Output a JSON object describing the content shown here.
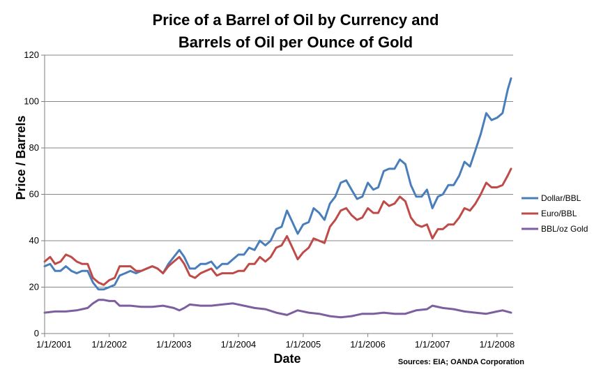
{
  "chart_data": {
    "type": "line",
    "title_lines": [
      "Price of a Barrel of Oil by Currency and",
      "Barrels of Oil per Ounce of Gold"
    ],
    "xlabel": "Date",
    "ylabel": "Price / Barrels",
    "source_note": "Sources: EIA; OANDA Corporation",
    "ylim": [
      0,
      120
    ],
    "yticks": [
      0,
      20,
      40,
      60,
      80,
      100,
      120
    ],
    "xlim": [
      "2001-01-01",
      "2008-04-01"
    ],
    "xticks": [
      {
        "date": "2001-01-01",
        "label": "1/1/2001"
      },
      {
        "date": "2002-01-01",
        "label": "1/1/2002"
      },
      {
        "date": "2003-01-01",
        "label": "1/1/2003"
      },
      {
        "date": "2004-01-01",
        "label": "1/1/2004"
      },
      {
        "date": "2005-01-01",
        "label": "1/1/2005"
      },
      {
        "date": "2006-01-01",
        "label": "1/1/2006"
      },
      {
        "date": "2007-01-01",
        "label": "1/1/2007"
      },
      {
        "date": "2008-01-01",
        "label": "1/1/2008"
      }
    ],
    "grid": "horizontal",
    "legend_position": "right",
    "series": [
      {
        "name": "Dollar/BBL",
        "color": "#4a7ebb",
        "points": [
          [
            "2001-01-01",
            29
          ],
          [
            "2001-02-01",
            30
          ],
          [
            "2001-03-01",
            27
          ],
          [
            "2001-04-01",
            27
          ],
          [
            "2001-05-01",
            29
          ],
          [
            "2001-06-01",
            27
          ],
          [
            "2001-07-01",
            26
          ],
          [
            "2001-08-01",
            27
          ],
          [
            "2001-09-01",
            27
          ],
          [
            "2001-10-01",
            22
          ],
          [
            "2001-11-01",
            19
          ],
          [
            "2001-12-01",
            19
          ],
          [
            "2002-01-01",
            20
          ],
          [
            "2002-02-01",
            21
          ],
          [
            "2002-03-01",
            25
          ],
          [
            "2002-04-01",
            26
          ],
          [
            "2002-05-01",
            27
          ],
          [
            "2002-06-01",
            26
          ],
          [
            "2002-07-01",
            27
          ],
          [
            "2002-08-01",
            28
          ],
          [
            "2002-09-01",
            29
          ],
          [
            "2002-10-01",
            28
          ],
          [
            "2002-11-01",
            26
          ],
          [
            "2002-12-01",
            30
          ],
          [
            "2003-01-01",
            33
          ],
          [
            "2003-02-01",
            36
          ],
          [
            "2003-03-01",
            33
          ],
          [
            "2003-04-01",
            28
          ],
          [
            "2003-05-01",
            28
          ],
          [
            "2003-06-01",
            30
          ],
          [
            "2003-07-01",
            30
          ],
          [
            "2003-08-01",
            31
          ],
          [
            "2003-09-01",
            28
          ],
          [
            "2003-10-01",
            30
          ],
          [
            "2003-11-01",
            30
          ],
          [
            "2003-12-01",
            32
          ],
          [
            "2004-01-01",
            34
          ],
          [
            "2004-02-01",
            34
          ],
          [
            "2004-03-01",
            37
          ],
          [
            "2004-04-01",
            36
          ],
          [
            "2004-05-01",
            40
          ],
          [
            "2004-06-01",
            38
          ],
          [
            "2004-07-01",
            40
          ],
          [
            "2004-08-01",
            45
          ],
          [
            "2004-09-01",
            46
          ],
          [
            "2004-10-01",
            53
          ],
          [
            "2004-11-01",
            48
          ],
          [
            "2004-12-01",
            43
          ],
          [
            "2005-01-01",
            47
          ],
          [
            "2005-02-01",
            48
          ],
          [
            "2005-03-01",
            54
          ],
          [
            "2005-04-01",
            52
          ],
          [
            "2005-05-01",
            49
          ],
          [
            "2005-06-01",
            56
          ],
          [
            "2005-07-01",
            59
          ],
          [
            "2005-08-01",
            65
          ],
          [
            "2005-09-01",
            66
          ],
          [
            "2005-10-01",
            62
          ],
          [
            "2005-11-01",
            58
          ],
          [
            "2005-12-01",
            59
          ],
          [
            "2006-01-01",
            65
          ],
          [
            "2006-02-01",
            62
          ],
          [
            "2006-03-01",
            63
          ],
          [
            "2006-04-01",
            70
          ],
          [
            "2006-05-01",
            71
          ],
          [
            "2006-06-01",
            71
          ],
          [
            "2006-07-01",
            75
          ],
          [
            "2006-08-01",
            73
          ],
          [
            "2006-09-01",
            64
          ],
          [
            "2006-10-01",
            59
          ],
          [
            "2006-11-01",
            59
          ],
          [
            "2006-12-01",
            62
          ],
          [
            "2007-01-01",
            54
          ],
          [
            "2007-02-01",
            59
          ],
          [
            "2007-03-01",
            60
          ],
          [
            "2007-04-01",
            64
          ],
          [
            "2007-05-01",
            64
          ],
          [
            "2007-06-01",
            68
          ],
          [
            "2007-07-01",
            74
          ],
          [
            "2007-08-01",
            72
          ],
          [
            "2007-09-01",
            79
          ],
          [
            "2007-10-01",
            86
          ],
          [
            "2007-11-01",
            95
          ],
          [
            "2007-12-01",
            92
          ],
          [
            "2008-01-01",
            93
          ],
          [
            "2008-02-01",
            95
          ],
          [
            "2008-03-01",
            105
          ],
          [
            "2008-03-20",
            110
          ]
        ]
      },
      {
        "name": "Euro/BBL",
        "color": "#be4b48",
        "points": [
          [
            "2001-01-01",
            31
          ],
          [
            "2001-02-01",
            33
          ],
          [
            "2001-03-01",
            30
          ],
          [
            "2001-04-01",
            31
          ],
          [
            "2001-05-01",
            34
          ],
          [
            "2001-06-01",
            33
          ],
          [
            "2001-07-01",
            31
          ],
          [
            "2001-08-01",
            30
          ],
          [
            "2001-09-01",
            30
          ],
          [
            "2001-10-01",
            24
          ],
          [
            "2001-11-01",
            22
          ],
          [
            "2001-12-01",
            21
          ],
          [
            "2002-01-01",
            23
          ],
          [
            "2002-02-01",
            24
          ],
          [
            "2002-03-01",
            29
          ],
          [
            "2002-04-01",
            29
          ],
          [
            "2002-05-01",
            29
          ],
          [
            "2002-06-01",
            27
          ],
          [
            "2002-07-01",
            27
          ],
          [
            "2002-08-01",
            28
          ],
          [
            "2002-09-01",
            29
          ],
          [
            "2002-10-01",
            28
          ],
          [
            "2002-11-01",
            26
          ],
          [
            "2002-12-01",
            29
          ],
          [
            "2003-01-01",
            31
          ],
          [
            "2003-02-01",
            33
          ],
          [
            "2003-03-01",
            30
          ],
          [
            "2003-04-01",
            25
          ],
          [
            "2003-05-01",
            24
          ],
          [
            "2003-06-01",
            26
          ],
          [
            "2003-07-01",
            27
          ],
          [
            "2003-08-01",
            28
          ],
          [
            "2003-09-01",
            25
          ],
          [
            "2003-10-01",
            26
          ],
          [
            "2003-11-01",
            26
          ],
          [
            "2003-12-01",
            26
          ],
          [
            "2004-01-01",
            27
          ],
          [
            "2004-02-01",
            27
          ],
          [
            "2004-03-01",
            30
          ],
          [
            "2004-04-01",
            30
          ],
          [
            "2004-05-01",
            33
          ],
          [
            "2004-06-01",
            31
          ],
          [
            "2004-07-01",
            33
          ],
          [
            "2004-08-01",
            37
          ],
          [
            "2004-09-01",
            38
          ],
          [
            "2004-10-01",
            42
          ],
          [
            "2004-11-01",
            37
          ],
          [
            "2004-12-01",
            32
          ],
          [
            "2005-01-01",
            35
          ],
          [
            "2005-02-01",
            37
          ],
          [
            "2005-03-01",
            41
          ],
          [
            "2005-04-01",
            40
          ],
          [
            "2005-05-01",
            39
          ],
          [
            "2005-06-01",
            46
          ],
          [
            "2005-07-01",
            49
          ],
          [
            "2005-08-01",
            53
          ],
          [
            "2005-09-01",
            54
          ],
          [
            "2005-10-01",
            51
          ],
          [
            "2005-11-01",
            49
          ],
          [
            "2005-12-01",
            50
          ],
          [
            "2006-01-01",
            54
          ],
          [
            "2006-02-01",
            52
          ],
          [
            "2006-03-01",
            52
          ],
          [
            "2006-04-01",
            57
          ],
          [
            "2006-05-01",
            55
          ],
          [
            "2006-06-01",
            56
          ],
          [
            "2006-07-01",
            59
          ],
          [
            "2006-08-01",
            57
          ],
          [
            "2006-09-01",
            50
          ],
          [
            "2006-10-01",
            47
          ],
          [
            "2006-11-01",
            46
          ],
          [
            "2006-12-01",
            47
          ],
          [
            "2007-01-01",
            41
          ],
          [
            "2007-02-01",
            45
          ],
          [
            "2007-03-01",
            45
          ],
          [
            "2007-04-01",
            47
          ],
          [
            "2007-05-01",
            47
          ],
          [
            "2007-06-01",
            50
          ],
          [
            "2007-07-01",
            54
          ],
          [
            "2007-08-01",
            53
          ],
          [
            "2007-09-01",
            56
          ],
          [
            "2007-10-01",
            60
          ],
          [
            "2007-11-01",
            65
          ],
          [
            "2007-12-01",
            63
          ],
          [
            "2008-01-01",
            63
          ],
          [
            "2008-02-01",
            64
          ],
          [
            "2008-03-01",
            68
          ],
          [
            "2008-03-20",
            71
          ]
        ]
      },
      {
        "name": "BBL/oz Gold",
        "color": "#7d5fa0",
        "points": [
          [
            "2001-01-01",
            9
          ],
          [
            "2001-03-01",
            9.5
          ],
          [
            "2001-05-01",
            9.5
          ],
          [
            "2001-07-01",
            10
          ],
          [
            "2001-09-01",
            11
          ],
          [
            "2001-10-01",
            13
          ],
          [
            "2001-11-01",
            14.5
          ],
          [
            "2001-12-01",
            14.5
          ],
          [
            "2002-01-01",
            14
          ],
          [
            "2002-02-01",
            14
          ],
          [
            "2002-03-01",
            12
          ],
          [
            "2002-05-01",
            12
          ],
          [
            "2002-07-01",
            11.5
          ],
          [
            "2002-09-01",
            11.5
          ],
          [
            "2002-11-01",
            12
          ],
          [
            "2003-01-01",
            11
          ],
          [
            "2003-02-01",
            10
          ],
          [
            "2003-03-01",
            11
          ],
          [
            "2003-04-01",
            12.5
          ],
          [
            "2003-06-01",
            12
          ],
          [
            "2003-08-01",
            12
          ],
          [
            "2003-10-01",
            12.5
          ],
          [
            "2003-12-01",
            13
          ],
          [
            "2004-02-01",
            12
          ],
          [
            "2004-04-01",
            11
          ],
          [
            "2004-06-01",
            10.5
          ],
          [
            "2004-08-01",
            9
          ],
          [
            "2004-10-01",
            8
          ],
          [
            "2004-12-01",
            10
          ],
          [
            "2005-02-01",
            9
          ],
          [
            "2005-04-01",
            8.5
          ],
          [
            "2005-06-01",
            7.5
          ],
          [
            "2005-08-01",
            7
          ],
          [
            "2005-10-01",
            7.5
          ],
          [
            "2005-12-01",
            8.5
          ],
          [
            "2006-02-01",
            8.5
          ],
          [
            "2006-04-01",
            9
          ],
          [
            "2006-06-01",
            8.5
          ],
          [
            "2006-08-01",
            8.5
          ],
          [
            "2006-10-01",
            10
          ],
          [
            "2006-12-01",
            10.5
          ],
          [
            "2007-01-01",
            12
          ],
          [
            "2007-03-01",
            11
          ],
          [
            "2007-05-01",
            10.5
          ],
          [
            "2007-07-01",
            9.5
          ],
          [
            "2007-09-01",
            9
          ],
          [
            "2007-11-01",
            8.5
          ],
          [
            "2008-01-01",
            9.5
          ],
          [
            "2008-02-01",
            10
          ],
          [
            "2008-03-20",
            9
          ]
        ]
      }
    ]
  }
}
